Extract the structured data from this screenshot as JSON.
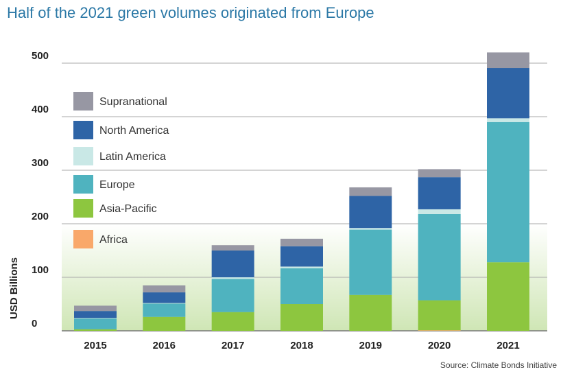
{
  "chart_data": {
    "type": "bar",
    "stacked": true,
    "title": "Half of the 2021 green volumes originated from Europe",
    "ylabel": "USD Billions",
    "xlabel": "",
    "ylim": [
      0,
      500
    ],
    "yticks": [
      0,
      100,
      200,
      300,
      400,
      500
    ],
    "grid": true,
    "legend_position": "top-left",
    "categories": [
      "2015",
      "2016",
      "2017",
      "2018",
      "2019",
      "2020",
      "2021"
    ],
    "series": [
      {
        "name": "Africa",
        "color": "#f9a86a",
        "values": [
          0,
          0,
          0,
          0,
          0,
          1,
          0
        ]
      },
      {
        "name": "Asia-Pacific",
        "color": "#8dc63f",
        "values": [
          3,
          26,
          35,
          50,
          67,
          56,
          128
        ]
      },
      {
        "name": "Europe",
        "color": "#4fb3bf",
        "values": [
          20,
          25,
          62,
          67,
          122,
          161,
          262
        ]
      },
      {
        "name": "Latin America",
        "color": "#c9e8e6",
        "values": [
          1,
          1,
          3,
          3,
          3,
          9,
          7
        ]
      },
      {
        "name": "North America",
        "color": "#2e64a6",
        "values": [
          13,
          20,
          50,
          38,
          60,
          60,
          94
        ]
      },
      {
        "name": "Supranational",
        "color": "#9797a3",
        "values": [
          10,
          13,
          10,
          14,
          16,
          15,
          29
        ]
      }
    ],
    "legend": [
      "Supranational",
      "North America",
      "Latin America",
      "Europe",
      "Asia-Pacific",
      "Africa"
    ],
    "source": "Source: Climate Bonds Initiative",
    "title_color": "#2b78a6"
  }
}
